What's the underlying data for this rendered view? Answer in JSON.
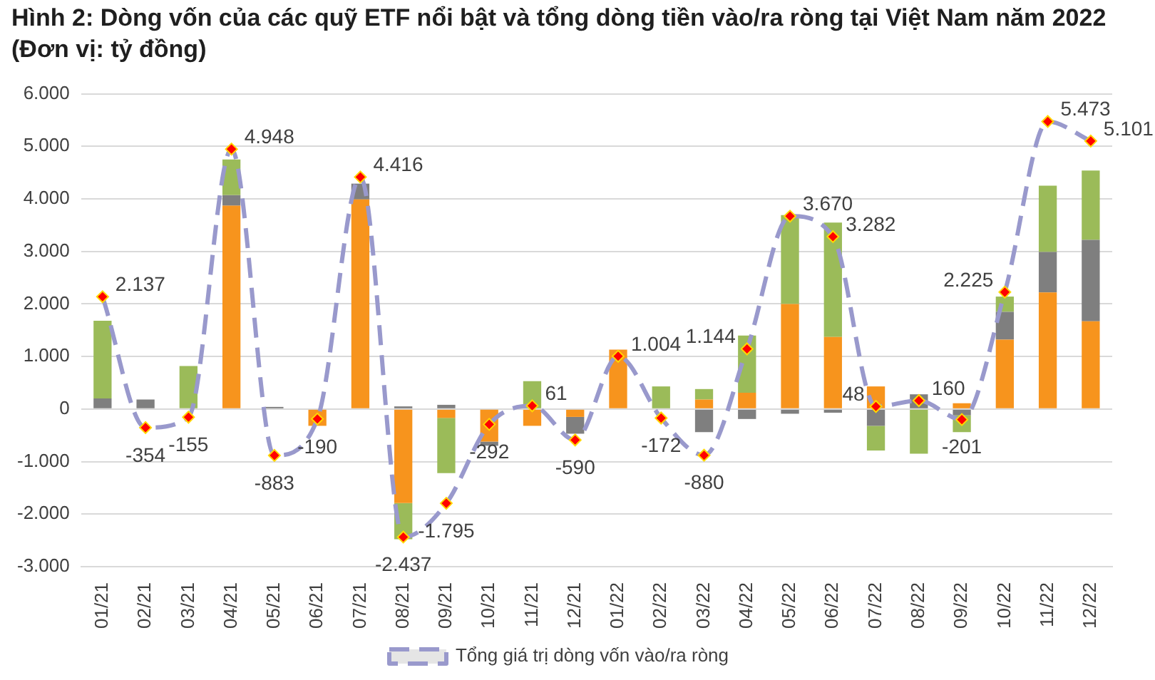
{
  "chart_data": {
    "type": "bar",
    "stacked": true,
    "title": "Hình 2: Dòng vốn của các quỹ ETF nổi bật và tổng dòng tiền vào/ra ròng tại Việt Nam năm 2022 (Đơn vị: tỷ đồng)",
    "categories": [
      "01/21",
      "02/21",
      "03/21",
      "04/21",
      "05/21",
      "06/21",
      "07/21",
      "08/21",
      "09/21",
      "10/21",
      "11/21",
      "12/21",
      "01/22",
      "02/22",
      "03/22",
      "04/22",
      "05/22",
      "06/22",
      "07/22",
      "08/22",
      "09/22",
      "10/22",
      "11/22",
      "12/22"
    ],
    "series": [
      {
        "color": "#f7941d",
        "values": [
          0,
          0,
          0,
          3870,
          0,
          -320,
          3990,
          -1790,
          -170,
          -620,
          -320,
          -150,
          1130,
          0,
          180,
          310,
          2000,
          1370,
          430,
          0,
          110,
          1320,
          2220,
          1670
        ]
      },
      {
        "color": "#7f7f7f",
        "values": [
          200,
          180,
          0,
          200,
          40,
          0,
          300,
          50,
          80,
          -80,
          0,
          -320,
          0,
          0,
          -440,
          -190,
          -90,
          -70,
          -320,
          280,
          -120,
          530,
          770,
          1550
        ]
      },
      {
        "color": "#9bbb59",
        "values": [
          1480,
          0,
          820,
          680,
          0,
          0,
          0,
          -690,
          -1050,
          0,
          530,
          0,
          0,
          430,
          200,
          1090,
          1690,
          2180,
          -470,
          -850,
          -320,
          290,
          1260,
          1320
        ]
      },
      {
        "type": "line",
        "name": "Tổng giá trị dòng vốn vào/ra ròng",
        "color": "#9999cc",
        "line_style": "dashed",
        "marker": "diamond",
        "value_labels": [
          "2.137",
          "-354",
          "-155",
          "4.948",
          "-883",
          "-190",
          "4.416",
          "-2.437",
          "-1.795",
          "-292",
          "61",
          "-590",
          "1.004",
          "-172",
          "-880",
          "1.144",
          "3.670",
          "3.282",
          "48",
          "160",
          "-201",
          "2.225",
          "5.473",
          "5.101"
        ],
        "values": [
          2137,
          -354,
          -155,
          4948,
          -883,
          -190,
          4416,
          -2437,
          -1795,
          -292,
          61,
          -590,
          1004,
          -172,
          -880,
          1144,
          3670,
          3282,
          48,
          160,
          -201,
          2225,
          5473,
          5101
        ]
      }
    ],
    "ylim": [
      -3000,
      6000
    ],
    "yticks": [
      {
        "value": -3000,
        "label": "-3.000"
      },
      {
        "value": -2000,
        "label": "-2.000"
      },
      {
        "value": -1000,
        "label": "-1.000"
      },
      0,
      {
        "value": 1000,
        "label": "1.000"
      },
      {
        "value": 2000,
        "label": "2.000"
      },
      {
        "value": 3000,
        "label": "3.000"
      },
      {
        "value": 4000,
        "label": "4.000"
      },
      {
        "value": 5000,
        "label": "5.000"
      },
      {
        "value": 6000,
        "label": "6.000"
      }
    ],
    "grid": "y",
    "legend": "bottom"
  }
}
